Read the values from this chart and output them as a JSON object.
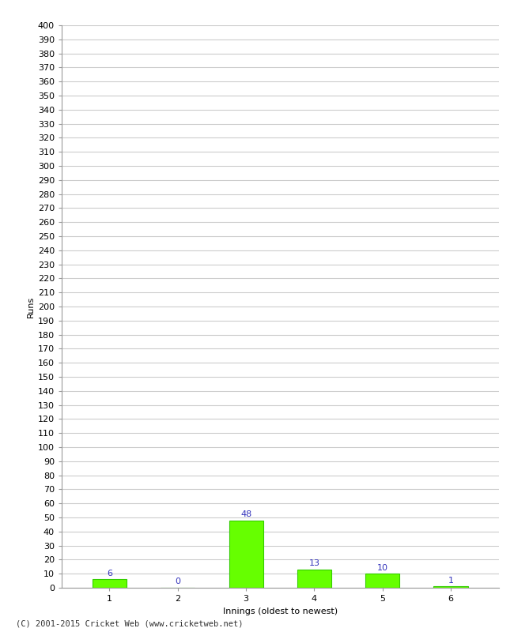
{
  "categories": [
    1,
    2,
    3,
    4,
    5,
    6
  ],
  "values": [
    6,
    0,
    48,
    13,
    10,
    1
  ],
  "bar_color": "#66ff00",
  "bar_edge_color": "#33cc00",
  "ylabel": "Runs",
  "xlabel": "Innings (oldest to newest)",
  "ylim": [
    0,
    400
  ],
  "ytick_step": 10,
  "background_color": "#ffffff",
  "grid_color": "#cccccc",
  "label_color": "#3333bb",
  "label_fontsize": 8,
  "axis_fontsize": 8,
  "footer": "(C) 2001-2015 Cricket Web (www.cricketweb.net)"
}
